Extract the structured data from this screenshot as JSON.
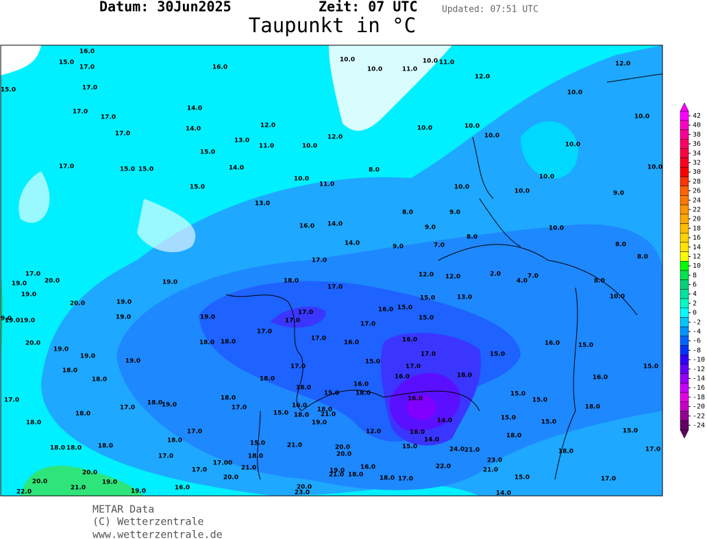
{
  "header": {
    "date": "Datum: 30Jun2025",
    "time": "Zeit: 07 UTC",
    "updated": "Updated: 07:51 UTC",
    "title": "Taupunkt in °C"
  },
  "footer": [
    "METAR Data",
    "(C) Wetterzentrale",
    "www.wetterzentrale.de"
  ],
  "colorbar": {
    "ticks": [
      42,
      40,
      38,
      36,
      34,
      32,
      30,
      28,
      26,
      24,
      22,
      20,
      18,
      16,
      14,
      12,
      10,
      8,
      6,
      4,
      2,
      0,
      -2,
      -4,
      -6,
      -8,
      -10,
      -12,
      -14,
      -16,
      -18,
      -20,
      -22,
      -24
    ],
    "colors": [
      "#ff00ff",
      "#ff00c8",
      "#ff0096",
      "#ff0064",
      "#ff0040",
      "#ff0020",
      "#ff0000",
      "#ff3200",
      "#ff6400",
      "#ff7800",
      "#ff9600",
      "#ffaa00",
      "#ffbe00",
      "#ffd200",
      "#ffe600",
      "#ffff00",
      "#00ff00",
      "#00e650",
      "#00d278",
      "#00e6a0",
      "#00ffc8",
      "#00ffff",
      "#00c8ff",
      "#0096ff",
      "#0064ff",
      "#0032ff",
      "#3200ff",
      "#6400ff",
      "#9600ff",
      "#c800ff",
      "#e600e6",
      "#c800c8",
      "#960096",
      "#640064"
    ]
  },
  "stations": [
    "16.0",
    "15.0",
    "17.0",
    "16.0",
    "15.0",
    "17.0",
    "17.0",
    "14.0",
    "17.0",
    "14.0",
    "12.0",
    "17.0",
    "13.0",
    "11.0",
    "15.0",
    "10.0",
    "12.0",
    "14.0",
    "17.0",
    "15.0",
    "15.0",
    "15.0",
    "13.0",
    "10.0",
    "11.0",
    "8.0",
    "10.0",
    "10.0",
    "11.0",
    "10.0",
    "11.0",
    "12.0",
    "12.0",
    "10.0",
    "10.0",
    "10.0",
    "10.0",
    "10.0",
    "10.0",
    "10.0",
    "10.0",
    "10.0",
    "9.0",
    "10.0",
    "8.0",
    "9.0",
    "9.0",
    "8.0",
    "10.0",
    "8.0",
    "8.0",
    "8.0",
    "10.0",
    "2.0",
    "4.0",
    "7.0",
    "12.0",
    "13.0",
    "12.0",
    "14.0",
    "14.0",
    "16.0",
    "9.0",
    "7.0",
    "17.0",
    "18.0",
    "17.0",
    "15.0",
    "15.0",
    "16.0",
    "15.0",
    "17.0",
    "17.0",
    "17.0",
    "19.0",
    "19.0",
    "19.0",
    "17.0",
    "20.0",
    "19.0",
    "19.0",
    "20.0",
    "19.0",
    "20.0",
    "19.0",
    "19.0",
    "19.0",
    "18.0",
    "18.0",
    "17.0",
    "17.0",
    "16.0",
    "16.0",
    "17.0",
    "15.0",
    "16.0",
    "15.0",
    "17.0",
    "15.0",
    "16.0",
    "18.0",
    "16.0",
    "15.0",
    "16.0",
    "14.0",
    "16.0",
    "14.0",
    "15.0",
    "12.0",
    "24.0",
    "21.0",
    "23.0",
    "22.0",
    "21.0",
    "15.0",
    "14.0",
    "17.0",
    "15.0",
    "17.0",
    "18.0",
    "18.0",
    "18.0",
    "15.0",
    "15.0",
    "15.0",
    "15.0",
    "17.0",
    "18.0",
    "18.0",
    "18.0",
    "18.0",
    "18.0",
    "20.0",
    "19.0",
    "21.0",
    "20.0",
    "22.0",
    "19.0",
    "16.0",
    "17.0",
    "20.0",
    "17.00",
    "21.0",
    "17.0",
    "18.0",
    "17.0",
    "17.0",
    "18.0",
    "18.0",
    "19.0",
    "17.0",
    "18.0",
    "18.0",
    "15.0",
    "18.0",
    "21.0",
    "20.0",
    "20.0",
    "19.0",
    "21.0",
    "18.0",
    "16.0",
    "18.0",
    "17.0",
    "20.0",
    "23.0",
    "15.0",
    "16.0",
    "18.0",
    "19.0",
    "18.0",
    "21.0",
    "18.0",
    "17.0",
    "18.0",
    "15.0",
    "16.0",
    "18.0",
    "19.0",
    "19.0",
    "9.0"
  ]
}
